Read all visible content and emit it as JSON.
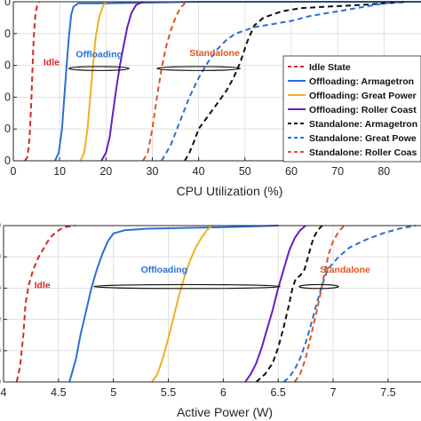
{
  "chart_data": [
    {
      "type": "line",
      "xlabel": "CPU Utilization (%)",
      "ylabel": "",
      "xlim": [
        0,
        88
      ],
      "ylim": [
        0,
        1
      ],
      "xticks": [
        0,
        10,
        20,
        30,
        40,
        50,
        60,
        70,
        80
      ],
      "ytick_labels": [
        "0",
        "0",
        "0",
        "0",
        "0",
        "0"
      ],
      "grid": true,
      "legend_position": "center-right",
      "annotations": [
        {
          "text": "Idle",
          "x": 6.5,
          "y": 0.6,
          "color": "#d62728"
        },
        {
          "text": "Offloading",
          "x": 13.5,
          "y": 0.65,
          "color": "#2c6fd1"
        },
        {
          "text": "Standalone",
          "x": 38,
          "y": 0.66,
          "color": "#e2531e"
        }
      ],
      "brackets": [
        {
          "x1": 12,
          "x2": 25,
          "y": 0.58
        },
        {
          "x1": 31,
          "x2": 49,
          "y": 0.58
        }
      ],
      "series": [
        {
          "name": "Idle State",
          "color": "#d62728",
          "dash": "dash",
          "width": 2,
          "points": [
            [
              2.5,
              0
            ],
            [
              3,
              0.02
            ],
            [
              3.3,
              0.08
            ],
            [
              3.6,
              0.2
            ],
            [
              3.9,
              0.38
            ],
            [
              4.1,
              0.55
            ],
            [
              4.3,
              0.7
            ],
            [
              4.5,
              0.82
            ],
            [
              4.8,
              0.93
            ],
            [
              5.2,
              0.98
            ],
            [
              5.6,
              1.0
            ]
          ]
        },
        {
          "name": "Offloading: Armagetron",
          "color": "#2c6fd1",
          "dash": "solid",
          "width": 2,
          "points": [
            [
              9,
              0
            ],
            [
              9.8,
              0.05
            ],
            [
              10.5,
              0.2
            ],
            [
              11,
              0.4
            ],
            [
              11.5,
              0.6
            ],
            [
              12,
              0.78
            ],
            [
              12.5,
              0.92
            ],
            [
              13,
              0.97
            ],
            [
              14,
              0.99
            ],
            [
              20,
              0.99
            ],
            [
              40,
              1.0
            ],
            [
              88,
              1.0
            ]
          ]
        },
        {
          "name": "Offloading: Great Power",
          "color": "#f0b021",
          "dash": "solid",
          "width": 2,
          "points": [
            [
              14.5,
              0
            ],
            [
              15.3,
              0.05
            ],
            [
              16,
              0.2
            ],
            [
              16.6,
              0.4
            ],
            [
              17.2,
              0.6
            ],
            [
              17.8,
              0.78
            ],
            [
              18.5,
              0.9
            ],
            [
              19.3,
              0.97
            ],
            [
              20,
              1.0
            ]
          ]
        },
        {
          "name": "Offloading: Roller Coaster",
          "color": "#6a1bc4",
          "dash": "solid",
          "width": 2,
          "points": [
            [
              19,
              0
            ],
            [
              20,
              0.05
            ],
            [
              20.8,
              0.15
            ],
            [
              21.5,
              0.3
            ],
            [
              22.2,
              0.45
            ],
            [
              23,
              0.6
            ],
            [
              23.8,
              0.72
            ],
            [
              24.6,
              0.84
            ],
            [
              25.5,
              0.93
            ],
            [
              26.5,
              0.98
            ],
            [
              28,
              1.0
            ]
          ]
        },
        {
          "name": "Standalone: Armagetron",
          "color": "#111111",
          "dash": "dash",
          "width": 2,
          "points": [
            [
              37,
              0
            ],
            [
              38,
              0.05
            ],
            [
              39,
              0.12
            ],
            [
              40,
              0.2
            ],
            [
              42,
              0.28
            ],
            [
              44,
              0.36
            ],
            [
              46,
              0.44
            ],
            [
              47.5,
              0.52
            ],
            [
              49,
              0.62
            ],
            [
              50.5,
              0.75
            ],
            [
              52,
              0.85
            ],
            [
              54,
              0.9
            ],
            [
              56,
              0.92
            ],
            [
              58,
              0.94
            ],
            [
              62,
              0.96
            ],
            [
              68,
              0.97
            ],
            [
              75,
              0.98
            ],
            [
              80,
              0.99
            ],
            [
              85,
              1.0
            ]
          ]
        },
        {
          "name": "Standalone: Great Power",
          "color": "#2c6fd1",
          "dash": "dash",
          "width": 2,
          "points": [
            [
              32,
              0
            ],
            [
              34,
              0.1
            ],
            [
              36,
              0.25
            ],
            [
              38,
              0.4
            ],
            [
              40,
              0.52
            ],
            [
              42,
              0.62
            ],
            [
              44,
              0.7
            ],
            [
              46,
              0.76
            ],
            [
              48,
              0.8
            ],
            [
              52,
              0.84
            ],
            [
              56,
              0.86
            ],
            [
              60,
              0.88
            ],
            [
              64,
              0.91
            ],
            [
              68,
              0.93
            ],
            [
              72,
              0.95
            ],
            [
              76,
              0.97
            ],
            [
              80,
              0.99
            ],
            [
              84,
              1.0
            ]
          ]
        },
        {
          "name": "Standalone: Roller Coaster",
          "color": "#e2531e",
          "dash": "dash",
          "width": 2,
          "points": [
            [
              28,
              0
            ],
            [
              29,
              0.05
            ],
            [
              30,
              0.2
            ],
            [
              31,
              0.4
            ],
            [
              32,
              0.58
            ],
            [
              33,
              0.72
            ],
            [
              34,
              0.82
            ],
            [
              35,
              0.9
            ],
            [
              36,
              0.96
            ],
            [
              37,
              0.99
            ],
            [
              38,
              1.0
            ]
          ]
        }
      ],
      "legend": [
        {
          "name": "Idle State",
          "color": "#d62728",
          "dash": "dash"
        },
        {
          "name": "Offloading: Armagetron",
          "color": "#2c6fd1",
          "dash": "solid"
        },
        {
          "name": "Offloading: Great Power",
          "color": "#f0b021",
          "dash": "solid"
        },
        {
          "name": "Offloading: Roller Coast",
          "color": "#6a1bc4",
          "dash": "solid"
        },
        {
          "name": "Standalone: Armagetron",
          "color": "#111111",
          "dash": "dash"
        },
        {
          "name": "Standalone: Great Powe",
          "color": "#2c6fd1",
          "dash": "dash"
        },
        {
          "name": "Standalone: Roller Coas",
          "color": "#e2531e",
          "dash": "dash"
        }
      ]
    },
    {
      "type": "line",
      "xlabel": "Active Power (W)",
      "ylabel": "",
      "xlim": [
        4,
        7.8
      ],
      "ylim": [
        0,
        1
      ],
      "xticks": [
        4,
        4.5,
        5,
        5.5,
        6,
        6.5,
        7,
        7.5
      ],
      "ytick_labels": [
        "0",
        "0",
        "0",
        "0",
        "0",
        "0"
      ],
      "grid": true,
      "annotations": [
        {
          "text": "Idle",
          "x": 4.28,
          "y": 0.6,
          "color": "#d62728"
        },
        {
          "text": "Offloading",
          "x": 5.25,
          "y": 0.7,
          "color": "#2c6fd1"
        },
        {
          "text": "Standalone",
          "x": 6.88,
          "y": 0.7,
          "color": "#e2531e"
        }
      ],
      "brackets": [
        {
          "x1": 4.82,
          "x2": 6.52,
          "y": 0.61
        },
        {
          "x1": 6.69,
          "x2": 7.05,
          "y": 0.61
        }
      ],
      "series": [
        {
          "name": "Idle State",
          "color": "#d62728",
          "dash": "dash",
          "width": 2,
          "points": [
            [
              4.12,
              0
            ],
            [
              4.15,
              0.1
            ],
            [
              4.18,
              0.3
            ],
            [
              4.2,
              0.5
            ],
            [
              4.23,
              0.62
            ],
            [
              4.27,
              0.72
            ],
            [
              4.32,
              0.8
            ],
            [
              4.37,
              0.86
            ],
            [
              4.42,
              0.92
            ],
            [
              4.48,
              0.96
            ],
            [
              4.55,
              0.99
            ],
            [
              4.65,
              1.0
            ]
          ]
        },
        {
          "name": "Offloading: Armagetron",
          "color": "#2c6fd1",
          "dash": "solid",
          "width": 2,
          "points": [
            [
              4.6,
              0
            ],
            [
              4.62,
              0.05
            ],
            [
              4.66,
              0.15
            ],
            [
              4.7,
              0.3
            ],
            [
              4.75,
              0.45
            ],
            [
              4.8,
              0.6
            ],
            [
              4.85,
              0.72
            ],
            [
              4.9,
              0.82
            ],
            [
              4.95,
              0.9
            ],
            [
              5.0,
              0.95
            ],
            [
              5.1,
              0.97
            ],
            [
              5.3,
              0.98
            ],
            [
              6.0,
              0.99
            ],
            [
              6.5,
              1.0
            ]
          ]
        },
        {
          "name": "Offloading: Great Power",
          "color": "#f0b021",
          "dash": "solid",
          "width": 2,
          "points": [
            [
              5.35,
              0
            ],
            [
              5.4,
              0.05
            ],
            [
              5.45,
              0.15
            ],
            [
              5.5,
              0.28
            ],
            [
              5.55,
              0.42
            ],
            [
              5.6,
              0.56
            ],
            [
              5.65,
              0.68
            ],
            [
              5.7,
              0.78
            ],
            [
              5.75,
              0.86
            ],
            [
              5.8,
              0.92
            ],
            [
              5.85,
              0.97
            ],
            [
              5.9,
              1.0
            ]
          ]
        },
        {
          "name": "Offloading: Roller Coaster",
          "color": "#6a1bc4",
          "dash": "solid",
          "width": 2,
          "points": [
            [
              6.2,
              0
            ],
            [
              6.25,
              0.05
            ],
            [
              6.3,
              0.12
            ],
            [
              6.35,
              0.22
            ],
            [
              6.4,
              0.34
            ],
            [
              6.45,
              0.46
            ],
            [
              6.5,
              0.6
            ],
            [
              6.55,
              0.72
            ],
            [
              6.6,
              0.84
            ],
            [
              6.65,
              0.92
            ],
            [
              6.7,
              0.97
            ],
            [
              6.75,
              1.0
            ]
          ]
        },
        {
          "name": "Standalone: Armagetron",
          "color": "#111111",
          "dash": "dash",
          "width": 2,
          "points": [
            [
              6.3,
              0
            ],
            [
              6.38,
              0.05
            ],
            [
              6.45,
              0.12
            ],
            [
              6.5,
              0.22
            ],
            [
              6.55,
              0.35
            ],
            [
              6.6,
              0.5
            ],
            [
              6.63,
              0.6
            ],
            [
              6.66,
              0.66
            ],
            [
              6.7,
              0.68
            ],
            [
              6.74,
              0.72
            ],
            [
              6.78,
              0.82
            ],
            [
              6.82,
              0.92
            ],
            [
              6.86,
              0.97
            ],
            [
              6.9,
              1.0
            ]
          ]
        },
        {
          "name": "Standalone: Great Power",
          "color": "#2c6fd1",
          "dash": "dash",
          "width": 2,
          "points": [
            [
              6.55,
              0
            ],
            [
              6.6,
              0.03
            ],
            [
              6.65,
              0.08
            ],
            [
              6.7,
              0.15
            ],
            [
              6.75,
              0.25
            ],
            [
              6.8,
              0.37
            ],
            [
              6.85,
              0.5
            ],
            [
              6.9,
              0.62
            ],
            [
              6.95,
              0.72
            ],
            [
              7.05,
              0.8
            ],
            [
              7.15,
              0.86
            ],
            [
              7.3,
              0.91
            ],
            [
              7.45,
              0.95
            ],
            [
              7.6,
              0.98
            ],
            [
              7.75,
              1.0
            ]
          ]
        },
        {
          "name": "Standalone: Roller Coaster",
          "color": "#e2531e",
          "dash": "dash",
          "width": 2,
          "points": [
            [
              6.65,
              0
            ],
            [
              6.7,
              0.05
            ],
            [
              6.75,
              0.15
            ],
            [
              6.8,
              0.3
            ],
            [
              6.85,
              0.45
            ],
            [
              6.88,
              0.55
            ],
            [
              6.9,
              0.62
            ],
            [
              6.93,
              0.72
            ],
            [
              6.96,
              0.82
            ],
            [
              7.0,
              0.9
            ],
            [
              7.05,
              0.96
            ],
            [
              7.1,
              1.0
            ]
          ]
        }
      ]
    }
  ]
}
